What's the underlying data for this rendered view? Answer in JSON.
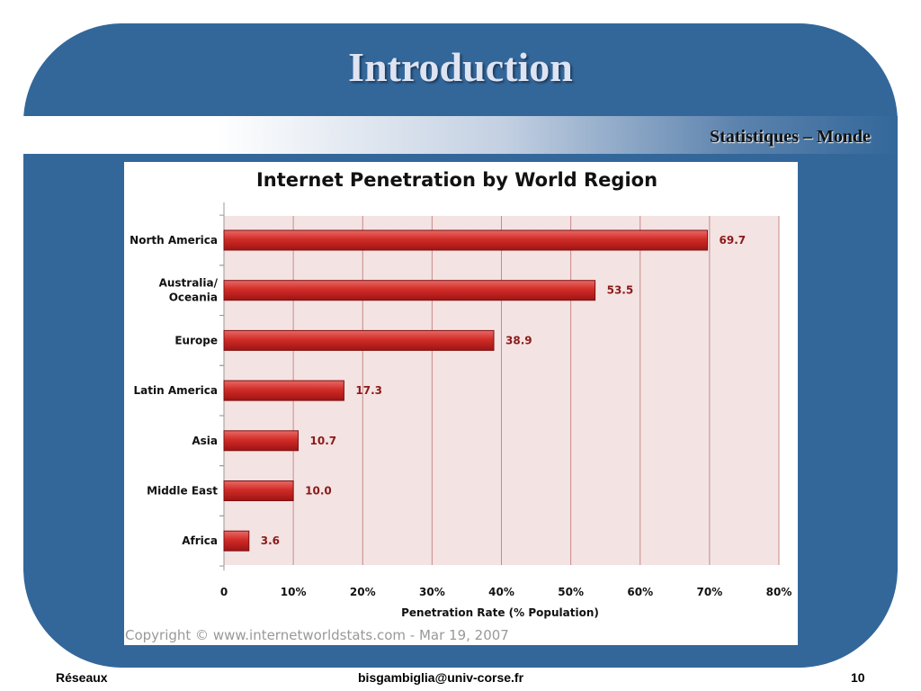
{
  "slide": {
    "title": "Introduction",
    "subtitle": "Statistiques – Monde"
  },
  "footer": {
    "left": "Réseaux",
    "center": "bisgambiglia@univ-corse.fr",
    "right": "10"
  },
  "colors": {
    "slide_background": "#33679a",
    "title_text": "#dfe4f2",
    "bar_fill": "#c8201f",
    "plot_background": "#f4e3e3",
    "value_label": "#8b1a1a"
  },
  "chart_data": {
    "type": "bar",
    "orientation": "horizontal",
    "title": "Internet Penetration by World Region",
    "xlabel": "Penetration Rate (% Population)",
    "ylabel": "",
    "categories": [
      [
        "North America"
      ],
      [
        "Australia/",
        "Oceania"
      ],
      [
        "Europe"
      ],
      [
        "Latin America"
      ],
      [
        "Asia"
      ],
      [
        "Middle East"
      ],
      [
        "Africa"
      ]
    ],
    "values": [
      69.7,
      53.5,
      38.9,
      17.3,
      10.7,
      10.0,
      3.6
    ],
    "value_labels": [
      "69.7",
      "53.5",
      "38.9",
      "17.3",
      "10.7",
      "10.0",
      "3.6"
    ],
    "xlim": [
      0,
      80
    ],
    "xticks": [
      0,
      10,
      20,
      30,
      40,
      50,
      60,
      70,
      80
    ],
    "xtick_labels": [
      "0",
      "10%",
      "20%",
      "30%",
      "40%",
      "50%",
      "60%",
      "70%",
      "80%"
    ],
    "grid": "vertical",
    "copyright": "Copyright © www.internetworldstats.com - Mar 19, 2007"
  }
}
